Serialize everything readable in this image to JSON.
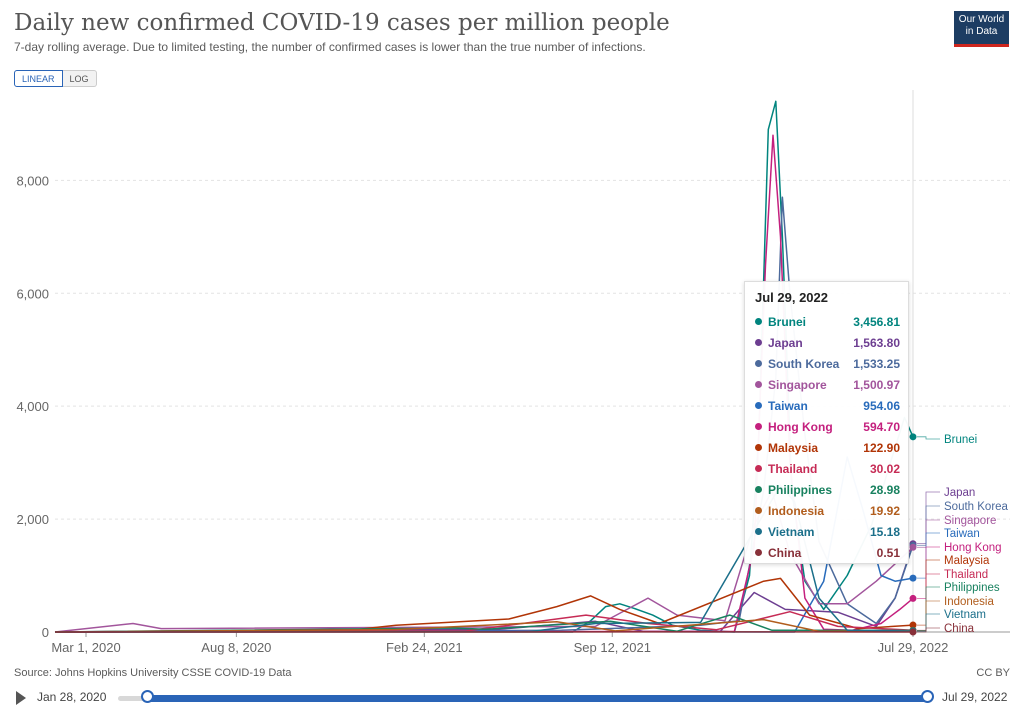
{
  "header": {
    "title": "Daily new confirmed COVID-19 cases per million people",
    "subtitle": "7-day rolling average. Due to limited testing, the number of confirmed cases is lower than the true number of infections.",
    "logo_line1": "Our World",
    "logo_line2": "in Data"
  },
  "toggle": {
    "linear_label": "LINEAR",
    "log_label": "LOG",
    "selected": "LINEAR"
  },
  "footer": {
    "source": "Source: Johns Hopkins University CSSE COVID-19 Data",
    "license": "CC BY"
  },
  "timeline": {
    "start_label": "Jan 28, 2020",
    "end_label": "Jul 29, 2022"
  },
  "tooltip": {
    "date": "Jul 29, 2022",
    "rows": [
      {
        "name": "Brunei",
        "value": "3,456.81",
        "color": "#00847e"
      },
      {
        "name": "Japan",
        "value": "1,563.80",
        "color": "#6d3e91"
      },
      {
        "name": "South Korea",
        "value": "1,533.25",
        "color": "#4c6a9c"
      },
      {
        "name": "Singapore",
        "value": "1,500.97",
        "color": "#a2559c"
      },
      {
        "name": "Taiwan",
        "value": "954.06",
        "color": "#286bbb"
      },
      {
        "name": "Hong Kong",
        "value": "594.70",
        "color": "#c4207e"
      },
      {
        "name": "Malaysia",
        "value": "122.90",
        "color": "#b13507"
      },
      {
        "name": "Thailand",
        "value": "30.02",
        "color": "#c62b55"
      },
      {
        "name": "Philippines",
        "value": "28.98",
        "color": "#18815f"
      },
      {
        "name": "Indonesia",
        "value": "19.92",
        "color": "#b15d1d"
      },
      {
        "name": "Vietnam",
        "value": "15.18",
        "color": "#1b6f8a"
      },
      {
        "name": "China",
        "value": "0.51",
        "color": "#883039"
      }
    ]
  },
  "chart_data": {
    "type": "line",
    "x_ticks": [
      "Mar 1, 2020",
      "Aug 8, 2020",
      "Feb 24, 2021",
      "Sep 12, 2021",
      "Jul 29, 2022"
    ],
    "y_ticks": [
      "0",
      "2,000",
      "4,000",
      "6,000",
      "8,000"
    ],
    "ylim": [
      0,
      9600
    ],
    "xlim": [
      "2020-01-28",
      "2022-07-29"
    ],
    "grid": true,
    "series": [
      {
        "name": "Brunei",
        "color": "#00847e",
        "points": [
          [
            "2020-01-28",
            0
          ],
          [
            "2021-08-01",
            0
          ],
          [
            "2021-08-20",
            200
          ],
          [
            "2021-09-05",
            450
          ],
          [
            "2021-09-20",
            500
          ],
          [
            "2021-10-05",
            420
          ],
          [
            "2021-10-25",
            300
          ],
          [
            "2021-11-15",
            120
          ],
          [
            "2021-12-15",
            30
          ],
          [
            "2022-01-20",
            0
          ],
          [
            "2022-02-05",
            1000
          ],
          [
            "2022-02-15",
            3500
          ],
          [
            "2022-02-25",
            8900
          ],
          [
            "2022-03-05",
            9400
          ],
          [
            "2022-03-12",
            7000
          ],
          [
            "2022-03-22",
            2500
          ],
          [
            "2022-04-05",
            900
          ],
          [
            "2022-04-25",
            400
          ],
          [
            "2022-05-20",
            1000
          ],
          [
            "2022-06-15",
            1900
          ],
          [
            "2022-07-05",
            3000
          ],
          [
            "2022-07-20",
            3800
          ],
          [
            "2022-07-29",
            3456.81
          ]
        ]
      },
      {
        "name": "Japan",
        "color": "#6d3e91",
        "points": [
          [
            "2020-01-28",
            0
          ],
          [
            "2021-01-05",
            50
          ],
          [
            "2021-01-20",
            40
          ],
          [
            "2021-05-15",
            50
          ],
          [
            "2021-08-25",
            190
          ],
          [
            "2021-10-15",
            10
          ],
          [
            "2022-01-05",
            10
          ],
          [
            "2022-02-10",
            700
          ],
          [
            "2022-03-15",
            400
          ],
          [
            "2022-05-10",
            350
          ],
          [
            "2022-06-20",
            100
          ],
          [
            "2022-07-10",
            600
          ],
          [
            "2022-07-29",
            1563.8
          ]
        ]
      },
      {
        "name": "South Korea",
        "color": "#4c6a9c",
        "points": [
          [
            "2020-01-28",
            0
          ],
          [
            "2021-07-20",
            30
          ],
          [
            "2021-12-15",
            120
          ],
          [
            "2022-01-25",
            200
          ],
          [
            "2022-02-20",
            2500
          ],
          [
            "2022-03-05",
            4500
          ],
          [
            "2022-03-12",
            7700
          ],
          [
            "2022-03-20",
            6000
          ],
          [
            "2022-04-05",
            3500
          ],
          [
            "2022-04-20",
            1600
          ],
          [
            "2022-05-20",
            500
          ],
          [
            "2022-06-20",
            150
          ],
          [
            "2022-07-10",
            600
          ],
          [
            "2022-07-29",
            1533.25
          ]
        ]
      },
      {
        "name": "Singapore",
        "color": "#a2559c",
        "points": [
          [
            "2020-01-28",
            0
          ],
          [
            "2020-04-20",
            150
          ],
          [
            "2020-05-20",
            60
          ],
          [
            "2021-08-25",
            100
          ],
          [
            "2021-10-20",
            600
          ],
          [
            "2021-11-20",
            300
          ],
          [
            "2022-01-10",
            200
          ],
          [
            "2022-02-10",
            1900
          ],
          [
            "2022-03-01",
            2500
          ],
          [
            "2022-03-20",
            1400
          ],
          [
            "2022-04-20",
            500
          ],
          [
            "2022-05-20",
            500
          ],
          [
            "2022-06-20",
            900
          ],
          [
            "2022-07-29",
            1500.97
          ]
        ]
      },
      {
        "name": "Taiwan",
        "color": "#286bbb",
        "points": [
          [
            "2020-01-28",
            0
          ],
          [
            "2021-05-25",
            20
          ],
          [
            "2021-07-01",
            5
          ],
          [
            "2022-03-25",
            0
          ],
          [
            "2022-04-25",
            900
          ],
          [
            "2022-05-20",
            3100
          ],
          [
            "2022-06-05",
            2200
          ],
          [
            "2022-06-25",
            1000
          ],
          [
            "2022-07-10",
            900
          ],
          [
            "2022-07-29",
            954.06
          ]
        ]
      },
      {
        "name": "Hong Kong",
        "color": "#c4207e",
        "points": [
          [
            "2020-01-28",
            0
          ],
          [
            "2022-01-20",
            10
          ],
          [
            "2022-02-10",
            1500
          ],
          [
            "2022-02-22",
            6500
          ],
          [
            "2022-03-02",
            8800
          ],
          [
            "2022-03-10",
            7000
          ],
          [
            "2022-03-20",
            3000
          ],
          [
            "2022-04-05",
            600
          ],
          [
            "2022-04-25",
            50
          ],
          [
            "2022-05-25",
            30
          ],
          [
            "2022-06-25",
            150
          ],
          [
            "2022-07-15",
            400
          ],
          [
            "2022-07-29",
            594.7
          ]
        ]
      },
      {
        "name": "Malaysia",
        "color": "#b13507",
        "points": [
          [
            "2020-01-28",
            0
          ],
          [
            "2020-12-01",
            20
          ],
          [
            "2021-01-25",
            120
          ],
          [
            "2021-05-25",
            230
          ],
          [
            "2021-07-15",
            450
          ],
          [
            "2021-08-20",
            640
          ],
          [
            "2021-09-20",
            400
          ],
          [
            "2021-11-01",
            150
          ],
          [
            "2022-02-20",
            900
          ],
          [
            "2022-03-10",
            950
          ],
          [
            "2022-04-10",
            300
          ],
          [
            "2022-06-01",
            60
          ],
          [
            "2022-07-29",
            122.9
          ]
        ]
      },
      {
        "name": "Thailand",
        "color": "#c62b55",
        "points": [
          [
            "2020-01-28",
            0
          ],
          [
            "2021-04-10",
            20
          ],
          [
            "2021-08-15",
            300
          ],
          [
            "2021-10-20",
            150
          ],
          [
            "2022-01-01",
            40
          ],
          [
            "2022-03-20",
            360
          ],
          [
            "2022-05-10",
            100
          ],
          [
            "2022-07-29",
            30.02
          ]
        ]
      },
      {
        "name": "Philippines",
        "color": "#18815f",
        "points": [
          [
            "2020-01-28",
            0
          ],
          [
            "2021-03-25",
            70
          ],
          [
            "2021-05-01",
            50
          ],
          [
            "2021-09-10",
            190
          ],
          [
            "2021-11-20",
            15
          ],
          [
            "2022-01-15",
            300
          ],
          [
            "2022-03-01",
            30
          ],
          [
            "2022-07-29",
            28.98
          ]
        ]
      },
      {
        "name": "Indonesia",
        "color": "#b15d1d",
        "points": [
          [
            "2020-01-28",
            0
          ],
          [
            "2021-01-25",
            45
          ],
          [
            "2021-07-15",
            180
          ],
          [
            "2021-09-15",
            20
          ],
          [
            "2022-02-20",
            220
          ],
          [
            "2022-04-20",
            10
          ],
          [
            "2022-07-29",
            19.92
          ]
        ]
      },
      {
        "name": "Vietnam",
        "color": "#1b6f8a",
        "points": [
          [
            "2020-01-28",
            0
          ],
          [
            "2021-06-15",
            5
          ],
          [
            "2021-08-25",
            150
          ],
          [
            "2021-12-15",
            170
          ],
          [
            "2022-03-10",
            2600
          ],
          [
            "2022-03-25",
            2300
          ],
          [
            "2022-04-20",
            600
          ],
          [
            "2022-05-20",
            30
          ],
          [
            "2022-07-29",
            15.18
          ]
        ]
      },
      {
        "name": "China",
        "color": "#883039",
        "points": [
          [
            "2020-01-28",
            0
          ],
          [
            "2022-04-15",
            2
          ],
          [
            "2022-07-29",
            0.51
          ]
        ]
      }
    ]
  }
}
